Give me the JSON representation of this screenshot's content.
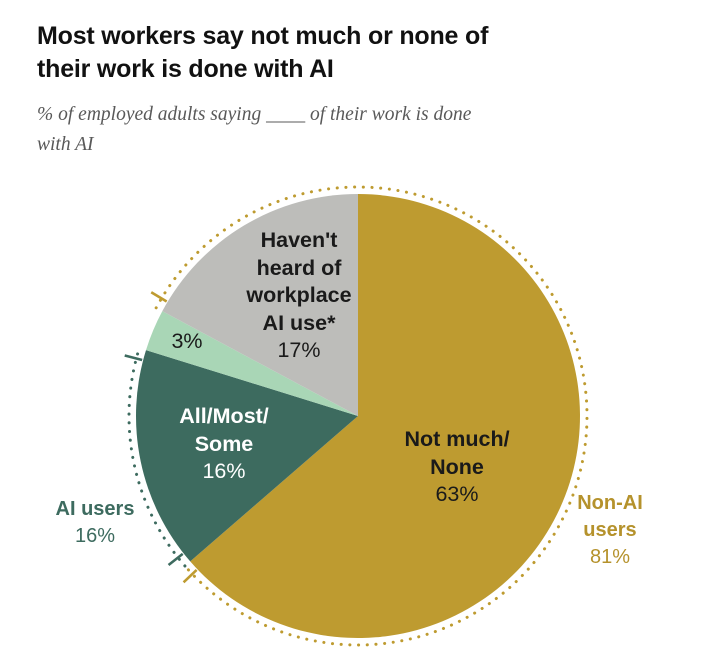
{
  "header": {
    "title_lines": [
      "Most workers say not much or none of",
      "their work is done with AI"
    ],
    "subtitle_lines": [
      "% of employed adults saying ____ of their work is done",
      "with AI"
    ]
  },
  "chart_data": {
    "type": "pie",
    "title": "Most workers say not much or none of their work is done with AI",
    "subtitle": "% of employed adults saying ____ of their work is done with AI",
    "unit": "%",
    "start_angle": "top",
    "direction": "clockwise",
    "total": 99,
    "slices": [
      {
        "name": "not-much-none",
        "label": "Not much/ None",
        "value": 63,
        "color": "#BE9B30"
      },
      {
        "name": "all-most-some",
        "label": "All/Most/ Some",
        "value": 16,
        "color": "#3D6B5F"
      },
      {
        "name": "three-percent",
        "label": "3%",
        "value": 3,
        "color": "#A9D6B6"
      },
      {
        "name": "havent-heard",
        "label": "Haven't heard of workplace AI use*",
        "value": 17,
        "color": "#BDBDBA"
      }
    ],
    "outer_arcs": [
      {
        "name": "non-ai-users",
        "label": "Non-AI users",
        "value_label": "81%",
        "start_value": 82,
        "end_value": 162,
        "color": "#BE9B30"
      },
      {
        "name": "ai-users",
        "label": "AI users",
        "value_label": "16%",
        "start_value": 63,
        "end_value": 79,
        "color": "#3D6B5F"
      }
    ],
    "legend_position": "outside-arcs",
    "grid": false
  },
  "slice_labels": {
    "havent_heard": {
      "lines": [
        "Haven't",
        "heard of",
        "workplace",
        "AI use*"
      ],
      "value": "17%"
    },
    "three_percent": {
      "value": "3%"
    },
    "all_most_some": {
      "lines": [
        "All/Most/",
        "Some"
      ],
      "value": "16%"
    },
    "not_much_none": {
      "lines": [
        "Not much/",
        "None"
      ],
      "value": "63%"
    },
    "ai_users": {
      "lines": [
        "AI users"
      ],
      "value": "16%"
    },
    "non_ai_users": {
      "lines": [
        "Non-AI",
        "users"
      ],
      "value": "81%"
    }
  }
}
